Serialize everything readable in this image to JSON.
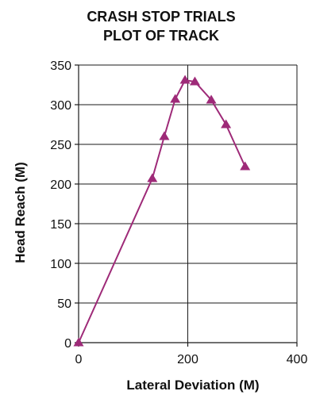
{
  "chart_data": {
    "type": "line",
    "title": [
      "CRASH STOP TRIALS",
      "PLOT OF TRACK"
    ],
    "xlabel": "Lateral Deviation (M)",
    "ylabel": "Head Reach  (M)",
    "xlim": [
      0,
      400
    ],
    "ylim": [
      0,
      350
    ],
    "xticks": [
      0,
      200,
      400
    ],
    "yticks": [
      0,
      50,
      100,
      150,
      200,
      250,
      300,
      350
    ],
    "grid": "horizontal and vertical major lines",
    "legend": "none",
    "series": [
      {
        "color": "#9e2a78",
        "marker": "triangle",
        "points": [
          {
            "x": 0,
            "y": 0
          },
          {
            "x": 135,
            "y": 207
          },
          {
            "x": 157,
            "y": 260
          },
          {
            "x": 177,
            "y": 307
          },
          {
            "x": 195,
            "y": 331
          },
          {
            "x": 213,
            "y": 329
          },
          {
            "x": 243,
            "y": 306
          },
          {
            "x": 270,
            "y": 275
          },
          {
            "x": 305,
            "y": 222
          }
        ]
      }
    ]
  }
}
